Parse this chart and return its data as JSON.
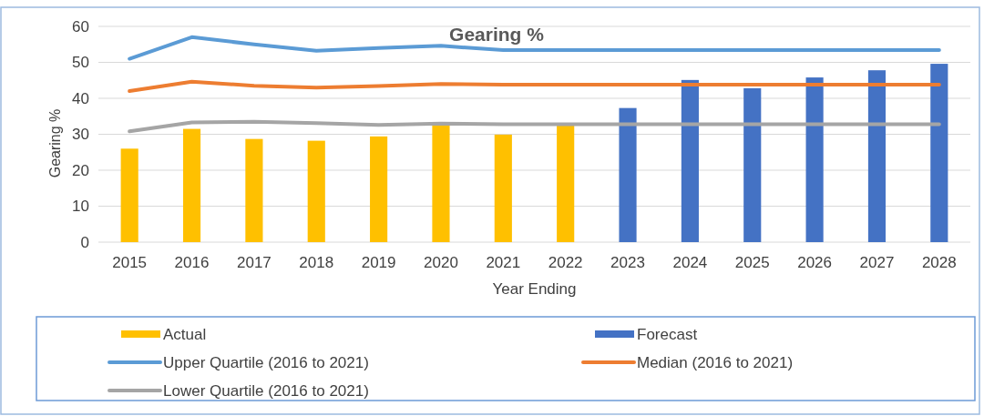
{
  "chart_data": {
    "type": "bar",
    "title": "Gearing %",
    "xlabel": "Year Ending",
    "ylabel": "Gearing %",
    "categories": [
      "2015",
      "2016",
      "2017",
      "2018",
      "2019",
      "2020",
      "2021",
      "2022",
      "2023",
      "2024",
      "2025",
      "2026",
      "2027",
      "2028"
    ],
    "series": [
      {
        "name": "Actual",
        "color": "#ffc000",
        "values": [
          26,
          31.5,
          28.7,
          28.2,
          29.4,
          32.7,
          29.9,
          32.4,
          null,
          null,
          null,
          null,
          null,
          null
        ]
      },
      {
        "name": "Forecast",
        "color": "#4472c4",
        "values": [
          null,
          null,
          null,
          null,
          null,
          null,
          null,
          null,
          37.3,
          45.1,
          42.8,
          45.8,
          47.8,
          49.6
        ]
      },
      {
        "name": "Upper Quartile (2016 to 2021)",
        "type": "line",
        "color": "#5b9bd5",
        "values": [
          51,
          57,
          55,
          53.2,
          54,
          54.6,
          53.4,
          53.4,
          53.4,
          53.4,
          53.4,
          53.4,
          53.4,
          53.4
        ]
      },
      {
        "name": "Median (2016 to 2021)",
        "type": "line",
        "color": "#ed7d31",
        "values": [
          42,
          44.6,
          43.5,
          43,
          43.4,
          44,
          43.8,
          43.8,
          43.8,
          43.8,
          43.8,
          43.8,
          43.8,
          43.8
        ]
      },
      {
        "name": "Lower Quartile (2016 to 2021)",
        "type": "line",
        "color": "#a5a5a5",
        "values": [
          30.8,
          33.3,
          33.5,
          33.1,
          32.6,
          33,
          32.8,
          32.8,
          32.8,
          32.8,
          32.8,
          32.8,
          32.8,
          32.8
        ]
      }
    ],
    "ylim": [
      0,
      60
    ],
    "yticks": [
      0,
      10,
      20,
      30,
      40,
      50,
      60
    ],
    "grid": "y",
    "legend": "bottom",
    "line_style": "solid"
  }
}
